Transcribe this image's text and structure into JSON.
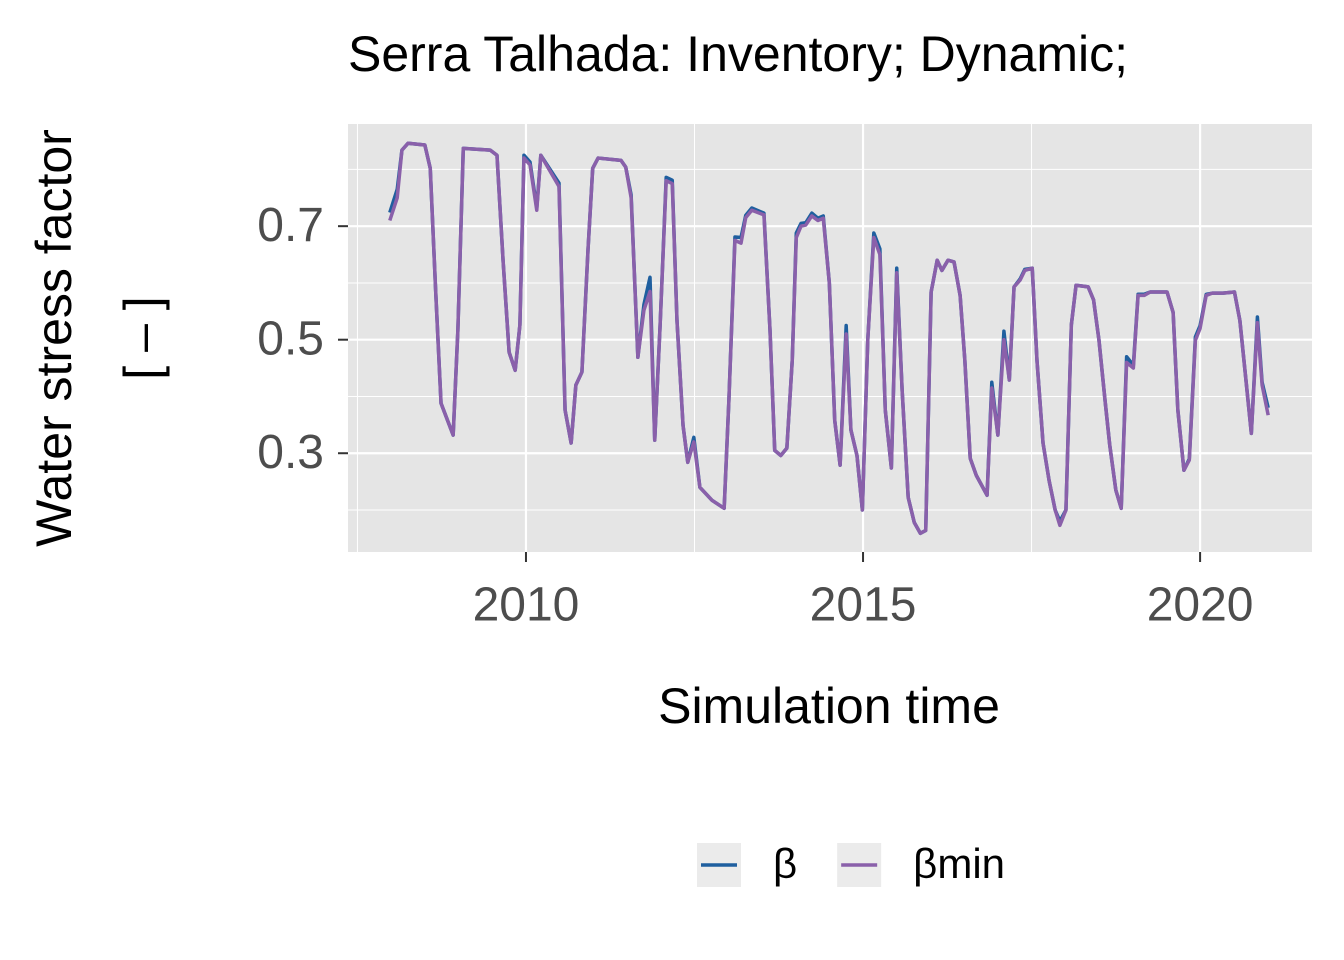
{
  "chart_data": {
    "type": "line",
    "title": "Serra Talhada: Inventory; Dynamic;",
    "x_label": "Simulation time",
    "y_label": [
      "Water stress factor",
      "[ – ]"
    ],
    "xlim": [
      2007.36,
      2021.66
    ],
    "xticks": [
      2010,
      2015,
      2020
    ],
    "ylim": [
      0.126,
      0.88
    ],
    "yticks": [
      0.3,
      0.5,
      0.7
    ],
    "grid": true,
    "legend": "bottom",
    "x": [
      2007.98,
      2008.09,
      2008.16,
      2008.25,
      2008.5,
      2008.58,
      2008.66,
      2008.74,
      2008.92,
      2008.99,
      2009.07,
      2009.47,
      2009.57,
      2009.66,
      2009.75,
      2009.84,
      2009.91,
      2009.97,
      2010.06,
      2010.16,
      2010.22,
      2010.49,
      2010.58,
      2010.67,
      2010.74,
      2010.83,
      2010.92,
      2010.99,
      2011.07,
      2011.41,
      2011.48,
      2011.56,
      2011.66,
      2011.75,
      2011.84,
      2011.91,
      2011.99,
      2012.08,
      2012.17,
      2012.24,
      2012.33,
      2012.4,
      2012.49,
      2012.58,
      2012.76,
      2012.94,
      2013.01,
      2013.1,
      2013.19,
      2013.26,
      2013.35,
      2013.53,
      2013.62,
      2013.69,
      2013.78,
      2013.87,
      2013.95,
      2014.01,
      2014.08,
      2014.15,
      2014.24,
      2014.33,
      2014.41,
      2014.5,
      2014.58,
      2014.66,
      2014.75,
      2014.82,
      2014.91,
      2014.99,
      2015.07,
      2015.16,
      2015.25,
      2015.33,
      2015.42,
      2015.5,
      2015.58,
      2015.67,
      2015.76,
      2015.85,
      2015.93,
      2016.01,
      2016.1,
      2016.17,
      2016.26,
      2016.35,
      2016.44,
      2016.51,
      2016.59,
      2016.68,
      2016.84,
      2016.91,
      2017.0,
      2017.09,
      2017.17,
      2017.24,
      2017.33,
      2017.4,
      2017.51,
      2017.58,
      2017.67,
      2017.76,
      2017.85,
      2017.92,
      2018.01,
      2018.09,
      2018.16,
      2018.34,
      2018.42,
      2018.5,
      2018.59,
      2018.66,
      2018.75,
      2018.83,
      2018.91,
      2019.01,
      2019.08,
      2019.17,
      2019.26,
      2019.42,
      2019.51,
      2019.6,
      2019.67,
      2019.76,
      2019.84,
      2019.93,
      2020.0,
      2020.09,
      2020.18,
      2020.34,
      2020.51,
      2020.59,
      2020.68,
      2020.76,
      2020.85,
      2020.92,
      2021.01
    ],
    "series": [
      {
        "name": "β",
        "color": "#1f5f9f",
        "values": [
          0.724,
          0.765,
          0.834,
          0.846,
          0.843,
          0.802,
          0.587,
          0.388,
          0.332,
          0.517,
          0.837,
          0.834,
          0.825,
          0.64,
          0.478,
          0.446,
          0.526,
          0.825,
          0.813,
          0.732,
          0.825,
          0.776,
          0.376,
          0.318,
          0.42,
          0.443,
          0.658,
          0.802,
          0.82,
          0.816,
          0.804,
          0.755,
          0.469,
          0.562,
          0.61,
          0.323,
          0.526,
          0.786,
          0.781,
          0.534,
          0.349,
          0.284,
          0.328,
          0.24,
          0.217,
          0.203,
          0.393,
          0.681,
          0.68,
          0.719,
          0.732,
          0.723,
          0.517,
          0.305,
          0.296,
          0.309,
          0.464,
          0.688,
          0.705,
          0.706,
          0.723,
          0.714,
          0.718,
          0.6,
          0.358,
          0.279,
          0.525,
          0.341,
          0.296,
          0.2,
          0.499,
          0.688,
          0.66,
          0.376,
          0.274,
          0.626,
          0.411,
          0.222,
          0.178,
          0.159,
          0.164,
          0.584,
          0.64,
          0.622,
          0.64,
          0.637,
          0.578,
          0.464,
          0.291,
          0.261,
          0.226,
          0.425,
          0.332,
          0.515,
          0.429,
          0.593,
          0.607,
          0.624,
          0.626,
          0.464,
          0.318,
          0.252,
          0.2,
          0.18,
          0.2,
          0.526,
          0.596,
          0.593,
          0.57,
          0.499,
          0.393,
          0.314,
          0.235,
          0.203,
          0.47,
          0.455,
          0.58,
          0.58,
          0.584,
          0.584,
          0.584,
          0.548,
          0.376,
          0.27,
          0.29,
          0.505,
          0.525,
          0.58,
          0.582,
          0.582,
          0.584,
          0.534,
          0.429,
          0.335,
          0.54,
          0.425,
          0.38
        ]
      },
      {
        "name": "βmin",
        "color": "#8a60aa",
        "values": [
          0.71,
          0.75,
          0.834,
          0.846,
          0.843,
          0.802,
          0.587,
          0.388,
          0.332,
          0.517,
          0.837,
          0.834,
          0.825,
          0.64,
          0.478,
          0.446,
          0.526,
          0.82,
          0.808,
          0.728,
          0.825,
          0.77,
          0.376,
          0.318,
          0.42,
          0.443,
          0.658,
          0.802,
          0.82,
          0.816,
          0.804,
          0.75,
          0.469,
          0.552,
          0.585,
          0.323,
          0.526,
          0.78,
          0.775,
          0.534,
          0.349,
          0.284,
          0.32,
          0.24,
          0.217,
          0.203,
          0.393,
          0.675,
          0.67,
          0.715,
          0.728,
          0.72,
          0.517,
          0.305,
          0.296,
          0.309,
          0.464,
          0.68,
          0.7,
          0.702,
          0.718,
          0.71,
          0.714,
          0.6,
          0.358,
          0.279,
          0.51,
          0.341,
          0.296,
          0.2,
          0.499,
          0.68,
          0.65,
          0.376,
          0.274,
          0.618,
          0.411,
          0.222,
          0.178,
          0.159,
          0.164,
          0.584,
          0.64,
          0.622,
          0.64,
          0.637,
          0.578,
          0.464,
          0.291,
          0.261,
          0.226,
          0.415,
          0.332,
          0.5,
          0.429,
          0.593,
          0.605,
          0.622,
          0.626,
          0.464,
          0.318,
          0.252,
          0.2,
          0.173,
          0.2,
          0.526,
          0.596,
          0.593,
          0.57,
          0.499,
          0.393,
          0.314,
          0.235,
          0.203,
          0.46,
          0.45,
          0.578,
          0.578,
          0.584,
          0.584,
          0.584,
          0.548,
          0.376,
          0.27,
          0.288,
          0.499,
          0.52,
          0.578,
          0.582,
          0.582,
          0.584,
          0.534,
          0.429,
          0.335,
          0.53,
          0.42,
          0.367
        ]
      }
    ]
  }
}
